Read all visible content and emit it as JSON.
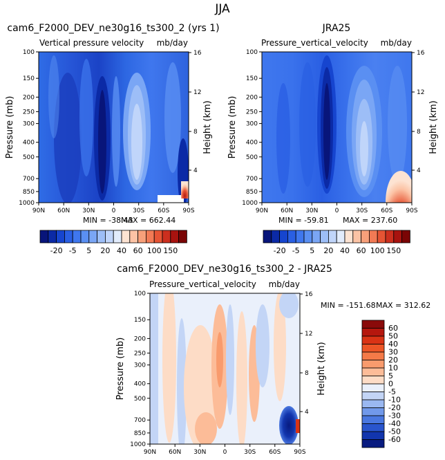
{
  "figure": {
    "suptitle": "JJA"
  },
  "chart_data": [
    {
      "type": "heatmap",
      "title": "cam6_F2000_DEV_ne30g16_ts300_2 (yrs 1)",
      "left_subtitle": "Vertical pressure velocity",
      "right_subtitle": "mb/day",
      "ylabel": "Pressure (mb)",
      "y2label": "Height (km)",
      "x_ticks": [
        "90N",
        "60N",
        "30N",
        "0",
        "30S",
        "60S",
        "90S"
      ],
      "y_ticks": [
        "100",
        "150",
        "200",
        "250",
        "300",
        "400",
        "500",
        "700",
        "850",
        "1000"
      ],
      "y2_ticks": [
        "16",
        "12",
        "8",
        "4"
      ],
      "min_label": "MIN = -38.43",
      "max_label": "MAX = 662.44",
      "min": -38.43,
      "max": 662.44,
      "colorbar_labels": [
        "-20",
        "-5",
        "5",
        "20",
        "40",
        "60",
        "100",
        "150"
      ],
      "colorbar_colors": [
        "#08157a",
        "#0b2aa6",
        "#1645cf",
        "#2a5fe3",
        "#3f77ee",
        "#5a8ff2",
        "#7aa6f5",
        "#9dbef7",
        "#c0d5fa",
        "#e2ecfc",
        "#fde3d2",
        "#fcc3a5",
        "#f8a07a",
        "#f27a55",
        "#e65434",
        "#cc2f1e",
        "#a8130f",
        "#7a0505"
      ]
    },
    {
      "type": "heatmap",
      "title": "JRA25",
      "left_subtitle": "Pressure_vertical_velocity",
      "right_subtitle": "mb/day",
      "ylabel": "Pressure (mb)",
      "y2label": "Height (km)",
      "x_ticks": [
        "90N",
        "60N",
        "30N",
        "0",
        "30S",
        "60S",
        "90S"
      ],
      "y_ticks": [
        "100",
        "150",
        "200",
        "250",
        "300",
        "400",
        "500",
        "700",
        "850",
        "1000"
      ],
      "y2_ticks": [
        "16",
        "12",
        "8",
        "4"
      ],
      "min_label": "MIN = -59.81",
      "max_label": "MAX = 237.60",
      "min": -59.81,
      "max": 237.6,
      "colorbar_labels": [
        "-20",
        "-5",
        "5",
        "20",
        "40",
        "60",
        "100",
        "150"
      ],
      "colorbar_colors": [
        "#08157a",
        "#0b2aa6",
        "#1645cf",
        "#2a5fe3",
        "#3f77ee",
        "#5a8ff2",
        "#7aa6f5",
        "#9dbef7",
        "#c0d5fa",
        "#e2ecfc",
        "#fde3d2",
        "#fcc3a5",
        "#f8a07a",
        "#f27a55",
        "#e65434",
        "#cc2f1e",
        "#a8130f",
        "#7a0505"
      ]
    },
    {
      "type": "heatmap",
      "title": "cam6_F2000_DEV_ne30g16_ts300_2 - JRA25",
      "left_subtitle": "Pressure_vertical_velocity",
      "right_subtitle": "mb/day",
      "ylabel": "Pressure (mb)",
      "y2label": "Height (km)",
      "x_ticks": [
        "90N",
        "60N",
        "30N",
        "0",
        "30S",
        "60S",
        "90S"
      ],
      "y_ticks": [
        "100",
        "150",
        "200",
        "250",
        "300",
        "400",
        "500",
        "700",
        "850",
        "1000"
      ],
      "y2_ticks": [
        "16",
        "12",
        "8",
        "4"
      ],
      "min_label": "MIN = -151.68",
      "max_label": "MAX = 312.62",
      "min": -151.68,
      "max": 312.62,
      "colorbar_labels": [
        "60",
        "50",
        "40",
        "30",
        "20",
        "10",
        "5",
        "0",
        "-5",
        "-10",
        "-20",
        "-30",
        "-40",
        "-50",
        "-60"
      ],
      "colorbar_colors": [
        "#8a0a0a",
        "#b5170e",
        "#d93315",
        "#ec5526",
        "#f47a48",
        "#f99b6d",
        "#fcbc98",
        "#fddcc6",
        "#eaf0fb",
        "#c3d5f6",
        "#9ab8f1",
        "#7199ea",
        "#4a78e0",
        "#2955cd",
        "#1235ad",
        "#081b80"
      ]
    }
  ]
}
